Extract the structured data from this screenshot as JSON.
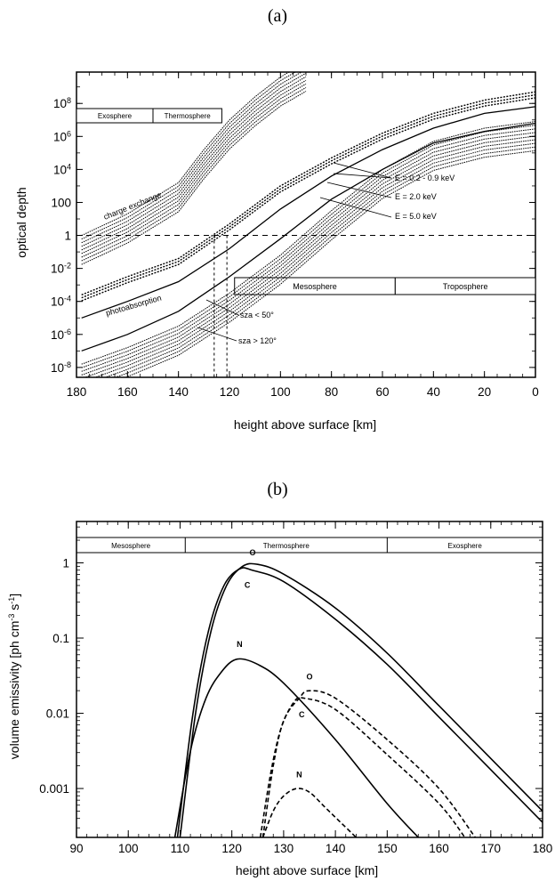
{
  "chart_data": [
    {
      "panel": "(a)",
      "type": "line",
      "xlabel": "height above surface  [km]",
      "ylabel": "optical depth",
      "xlim": [
        180,
        0
      ],
      "ylim_log10": [
        -8.6,
        9.9
      ],
      "yscale": "log",
      "x_ticks": [
        "180",
        "160",
        "140",
        "120",
        "100",
        "80",
        "60",
        "40",
        "20",
        "0"
      ],
      "x_tick_values": [
        180,
        160,
        140,
        120,
        100,
        80,
        60,
        40,
        20,
        0
      ],
      "y_ticks": [
        "10-8",
        "10-6",
        "10-4",
        "10-2",
        "1",
        "100",
        "104",
        "106",
        "108"
      ],
      "y_tick_exp": [
        -8,
        -6,
        -4,
        -2,
        0,
        2,
        4,
        6,
        8
      ],
      "regions_top": [
        {
          "label": "Exosphere",
          "x_range": [
            180,
            150
          ]
        },
        {
          "label": "Thermosphere",
          "x_range": [
            150,
            123
          ]
        }
      ],
      "regions_mid": [
        {
          "label": "Mesosphere",
          "x_range": [
            118,
            55
          ]
        },
        {
          "label": "Troposphere",
          "x_range": [
            55,
            0
          ]
        }
      ],
      "annotations": {
        "charge_exchange": "charge exchange",
        "photoabsorption": "photoabsorption",
        "e1": "E = 0.2 - 0.9 keV",
        "e2": "E = 2.0 keV",
        "e3": "E = 5.0 keV",
        "sza1": "sza < 50°",
        "sza2": "sza > 120°"
      },
      "reference_line": {
        "y": 1,
        "style": "dashed"
      },
      "vertical_dashed_x": [
        126,
        121
      ],
      "series": [
        {
          "group": "charge exchange",
          "x": [
            178,
            160,
            140,
            130,
            120,
            110,
            100,
            90
          ],
          "log10_y": [
            0,
            1.3,
            3.2,
            5.2,
            7.0,
            8.4,
            9.6,
            10.5
          ]
        },
        {
          "group": "photoabsorption",
          "x": [
            178,
            160,
            140,
            120,
            100,
            80,
            60,
            40,
            20,
            0
          ],
          "log10_y": [
            -7.8,
            -6.8,
            -5.5,
            -3.5,
            -1.2,
            1.5,
            4.0,
            5.7,
            6.5,
            6.9
          ]
        },
        {
          "label": "E = 0.2 - 0.9 keV",
          "x": [
            178,
            160,
            140,
            120,
            100,
            80,
            60,
            40,
            20,
            0
          ],
          "log10_y": [
            -3.6,
            -2.5,
            -1.4,
            0.7,
            3.0,
            4.7,
            6.2,
            7.4,
            8.2,
            8.7
          ]
        },
        {
          "label": "E = 2.0 keV",
          "x": [
            178,
            160,
            140,
            120,
            100,
            80,
            60,
            40,
            20,
            0
          ],
          "log10_y": [
            -5.0,
            -4.0,
            -2.8,
            -0.8,
            1.6,
            3.6,
            5.2,
            6.5,
            7.4,
            7.8
          ]
        },
        {
          "label": "E = 5.0 keV",
          "x": [
            178,
            160,
            140,
            120,
            100,
            80,
            60,
            40,
            20,
            0
          ],
          "log10_y": [
            -7.0,
            -6.0,
            -4.6,
            -2.5,
            -0.2,
            2.2,
            4.0,
            5.6,
            6.3,
            6.8
          ]
        }
      ]
    },
    {
      "panel": "(b)",
      "type": "line",
      "xlabel": "height above surface  [km]",
      "ylabel": "volume emissivity  [ph cm-3 s-1]",
      "xlim": [
        90,
        180
      ],
      "ylim_log10": [
        -3.65,
        0.55
      ],
      "yscale": "log",
      "x_ticks": [
        "90",
        "100",
        "110",
        "120",
        "130",
        "140",
        "150",
        "160",
        "170",
        "180"
      ],
      "x_tick_values": [
        90,
        100,
        110,
        120,
        130,
        140,
        150,
        160,
        170,
        180
      ],
      "y_ticks": [
        "1",
        "0.1",
        "0.01",
        "0.001"
      ],
      "y_tick_values": [
        1,
        0.1,
        0.01,
        0.001
      ],
      "regions_top": [
        {
          "label": "Mesosphere",
          "x_range": [
            90,
            111
          ]
        },
        {
          "label": "Thermosphere",
          "x_range": [
            111,
            150
          ]
        },
        {
          "label": "Exosphere",
          "x_range": [
            150,
            180
          ]
        }
      ],
      "series": [
        {
          "label": "O",
          "style": "solid",
          "x": [
            110,
            113,
            116,
            119,
            122,
            125,
            130,
            140,
            150,
            160,
            170,
            180
          ],
          "log10_y": [
            -3.65,
            -2.0,
            -0.9,
            -0.3,
            -0.05,
            -0.02,
            -0.15,
            -0.6,
            -1.2,
            -1.9,
            -2.6,
            -3.3
          ]
        },
        {
          "label": "C",
          "style": "solid",
          "x": [
            109.5,
            112.5,
            115.5,
            118.5,
            121.5,
            124,
            130,
            140,
            150,
            160,
            170,
            180
          ],
          "log10_y": [
            -3.65,
            -2.0,
            -0.9,
            -0.3,
            -0.08,
            -0.1,
            -0.25,
            -0.75,
            -1.35,
            -2.05,
            -2.75,
            -3.45
          ]
        },
        {
          "label": "N",
          "style": "solid",
          "x": [
            109,
            112,
            115,
            118,
            121,
            125,
            130,
            140,
            150,
            156
          ],
          "log10_y": [
            -3.65,
            -2.5,
            -1.8,
            -1.45,
            -1.28,
            -1.35,
            -1.6,
            -2.35,
            -3.2,
            -3.65
          ]
        },
        {
          "label": "O",
          "style": "dashed",
          "x": [
            126,
            128,
            130,
            133,
            135,
            140,
            150,
            160,
            167
          ],
          "log10_y": [
            -3.65,
            -2.7,
            -2.1,
            -1.8,
            -1.7,
            -1.8,
            -2.35,
            -3.0,
            -3.65
          ]
        },
        {
          "label": "C",
          "style": "dashed",
          "x": [
            125.5,
            127.5,
            129.5,
            132,
            134,
            140,
            150,
            160,
            165
          ],
          "log10_y": [
            -3.65,
            -2.8,
            -2.2,
            -1.85,
            -1.8,
            -1.95,
            -2.55,
            -3.2,
            -3.65
          ]
        },
        {
          "label": "N",
          "style": "dashed",
          "x": [
            126,
            128,
            130,
            132.5,
            135,
            138,
            141,
            144
          ],
          "log10_y": [
            -3.65,
            -3.3,
            -3.1,
            -3.0,
            -3.05,
            -3.25,
            -3.45,
            -3.65
          ]
        }
      ],
      "curve_labels": [
        {
          "text": "O",
          "x": 124,
          "log10_y": 0.1
        },
        {
          "text": "C",
          "x": 123,
          "log10_y": -0.33
        },
        {
          "text": "N",
          "x": 121.5,
          "log10_y": -1.12
        },
        {
          "text": "O",
          "x": 135,
          "log10_y": -1.55
        },
        {
          "text": "C",
          "x": 133.5,
          "log10_y": -2.05
        },
        {
          "text": "N",
          "x": 133,
          "log10_y": -2.85
        }
      ]
    }
  ]
}
